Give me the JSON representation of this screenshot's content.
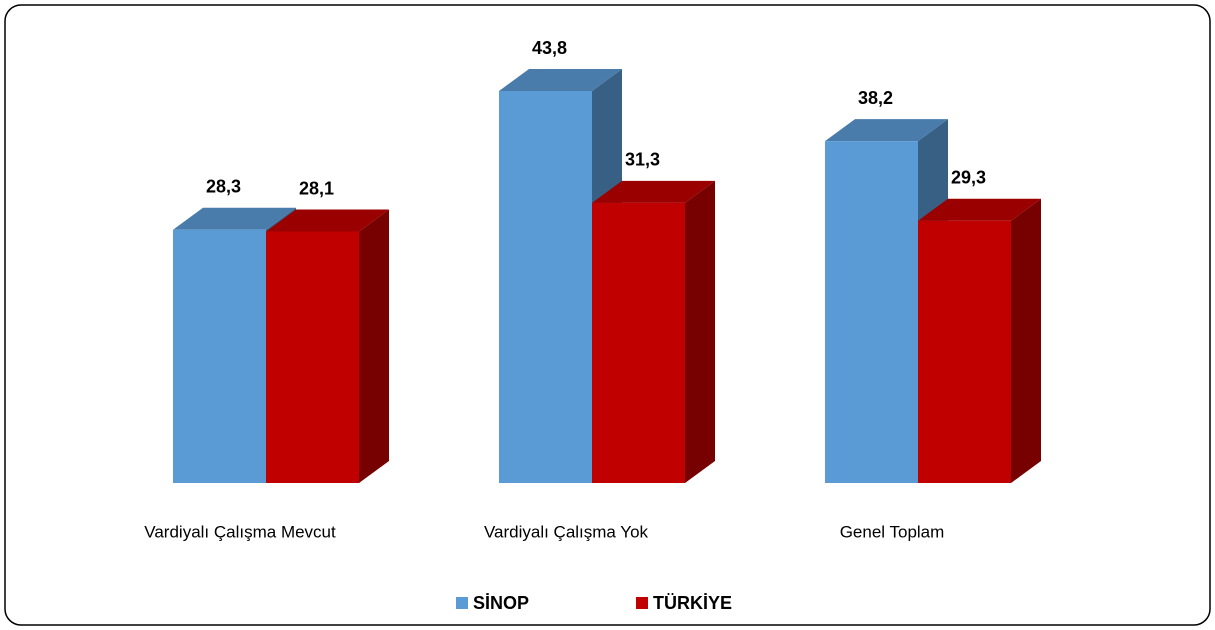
{
  "chart_data": {
    "type": "bar3d",
    "categories": [
      "Vardiyalı Çalışma Mevcut",
      "Vardiyalı Çalışma Yok",
      "Genel Toplam"
    ],
    "series": [
      {
        "name": "SİNOP",
        "color": "#5b9bd5",
        "values": [
          28.3,
          43.8,
          38.2
        ],
        "value_labels": [
          "28,3",
          "43,8",
          "38,2"
        ]
      },
      {
        "name": "TÜRKİYE",
        "color": "#c00000",
        "values": [
          28.1,
          31.3,
          29.3
        ],
        "value_labels": [
          "28,1",
          "31,3",
          "29,3"
        ]
      }
    ],
    "legend": "bottom"
  }
}
